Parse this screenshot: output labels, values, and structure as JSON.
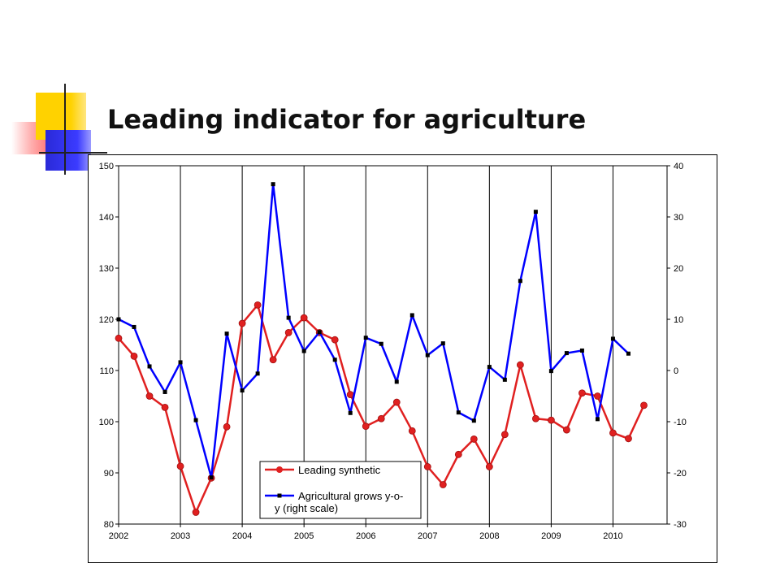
{
  "title": "Leading indicator for agriculture",
  "chart_data": {
    "type": "line",
    "title": "Leading indicator for agriculture",
    "x_tick_labels": [
      "2002",
      "2003",
      "2004",
      "2005",
      "2006",
      "2007",
      "2008",
      "2009",
      "2010"
    ],
    "x_range": [
      2002,
      2010.875
    ],
    "y_left": {
      "range": [
        80,
        150
      ],
      "ticks": [
        150,
        140,
        130,
        120,
        110,
        100,
        90,
        80
      ]
    },
    "y_right": {
      "range": [
        -30,
        40
      ],
      "ticks": [
        40,
        30,
        20,
        10,
        0,
        -10,
        -20,
        -30
      ]
    },
    "grid": "vertical lines at each year",
    "legend_position": "bottom-center",
    "x": [
      2002.0,
      2002.25,
      2002.5,
      2002.75,
      2003.0,
      2003.25,
      2003.5,
      2003.75,
      2004.0,
      2004.25,
      2004.5,
      2004.75,
      2005.0,
      2005.25,
      2005.5,
      2005.75,
      2006.0,
      2006.25,
      2006.5,
      2006.75,
      2007.0,
      2007.25,
      2007.5,
      2007.75,
      2008.0,
      2008.25,
      2008.5,
      2008.75,
      2009.0,
      2009.25,
      2009.5,
      2009.75,
      2010.0,
      2010.25,
      2010.5
    ],
    "series": [
      {
        "name": "Leading synthetic",
        "axis": "left",
        "color": "#e02020",
        "marker": "circle",
        "values": [
          116.3,
          112.8,
          105.0,
          102.8,
          91.3,
          82.3,
          89.0,
          99.0,
          119.2,
          122.8,
          112.1,
          117.4,
          120.3,
          117.4,
          116.0,
          105.3,
          99.1,
          100.6,
          103.8,
          98.2,
          91.2,
          87.7,
          93.6,
          96.6,
          91.2,
          97.5,
          111.1,
          100.6,
          100.3,
          98.4,
          105.6,
          105.0,
          97.8,
          96.7,
          103.2
        ]
      },
      {
        "name": "Agricultural grows y-o-y (right scale)",
        "axis": "right",
        "color": "#0000ff",
        "marker": "square",
        "values": [
          10.0,
          8.5,
          0.8,
          -4.2,
          1.6,
          -9.7,
          -20.9,
          7.2,
          -3.9,
          -0.6,
          36.4,
          10.3,
          3.8,
          7.5,
          2.1,
          -8.3,
          6.4,
          5.2,
          -2.2,
          10.8,
          3.0,
          5.3,
          -8.2,
          -9.8,
          0.7,
          -1.8,
          17.5,
          31.0,
          -0.1,
          3.4,
          3.9,
          -9.5,
          6.2,
          3.3,
          null
        ]
      }
    ]
  }
}
